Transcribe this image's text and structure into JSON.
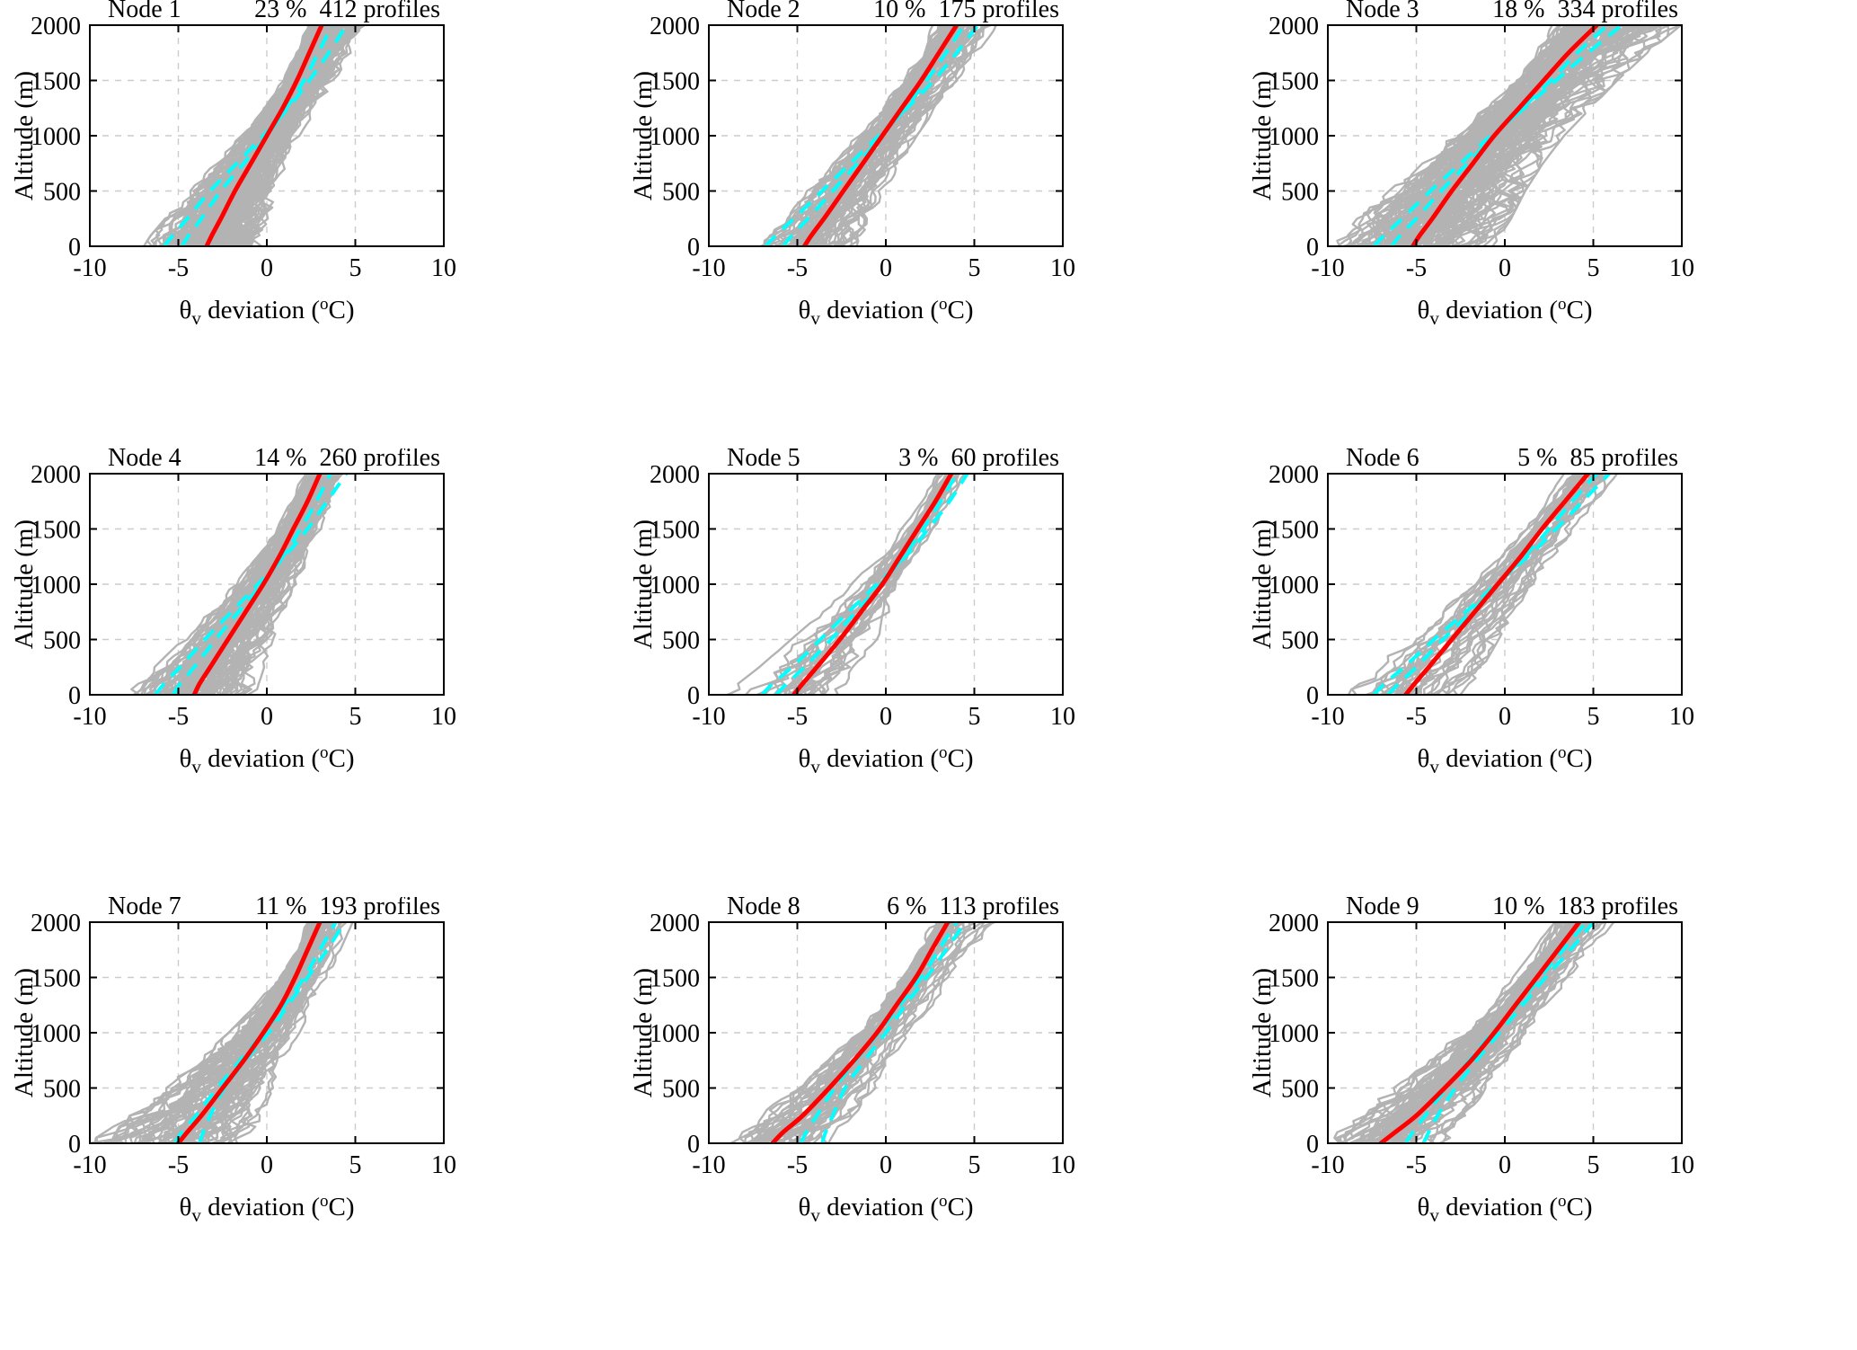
{
  "figure": {
    "layout": "3x3-small-multiples",
    "rows": 3,
    "cols": 3
  },
  "colors": {
    "profiles": "#b3b3b3",
    "mean": "#ff0000",
    "dashed": "#00ffff",
    "grid": "#cccccc",
    "axis": "#000000",
    "background": "#ffffff"
  },
  "axis": {
    "xlim": [
      -10,
      10
    ],
    "xticks": [
      -10,
      -5,
      0,
      5,
      10
    ],
    "ylim": [
      0,
      2000
    ],
    "yticks": [
      0,
      500,
      1000,
      1500,
      2000
    ],
    "ylabel": "Altitude (m)",
    "xlabel": {
      "theta": "θ",
      "sub": "v",
      "mid": " deviation (",
      "sup": "o",
      "end": "C)"
    },
    "grid": true
  },
  "altitudes": [
    0,
    100,
    250,
    500,
    750,
    1000,
    1250,
    1500,
    1750,
    2000
  ],
  "chart_data": [
    {
      "type": "line",
      "title": {
        "node": "Node 1",
        "stats": "23 %  412 profiles"
      },
      "percent": 23,
      "n_profiles": 412,
      "mean": [
        -3.4,
        -3.1,
        -2.6,
        -1.8,
        -0.9,
        0.0,
        0.9,
        1.7,
        2.4,
        3.1
      ],
      "dashed1": [
        -4.8,
        -4.4,
        -3.7,
        -2.6,
        -1.3,
        0.0,
        1.1,
        2.1,
        2.9,
        3.7
      ],
      "dashed2": [
        -5.8,
        -5.3,
        -4.5,
        -3.2,
        -1.7,
        -0.2,
        1.2,
        2.4,
        3.5,
        4.5
      ],
      "env_min": [
        -6.8,
        -6.4,
        -5.6,
        -4.2,
        -2.8,
        -1.4,
        -0.1,
        1.0,
        1.8,
        2.4
      ],
      "env_max": [
        -0.1,
        0.0,
        0.2,
        0.5,
        1.0,
        1.7,
        2.7,
        3.7,
        4.6,
        5.5
      ]
    },
    {
      "type": "line",
      "title": {
        "node": "Node 2",
        "stats": "10 %  175 profiles"
      },
      "percent": 10,
      "n_profiles": 175,
      "mean": [
        -4.6,
        -4.2,
        -3.5,
        -2.4,
        -1.3,
        -0.2,
        0.9,
        2.0,
        3.0,
        4.0
      ],
      "dashed1": [
        -5.8,
        -5.3,
        -4.4,
        -3.0,
        -1.6,
        -0.2,
        1.1,
        2.3,
        3.4,
        4.4
      ],
      "dashed2": [
        -6.8,
        -6.2,
        -5.2,
        -3.6,
        -2.0,
        -0.4,
        1.2,
        2.7,
        4.0,
        5.2
      ],
      "env_min": [
        -7.6,
        -7.0,
        -6.0,
        -4.5,
        -3.0,
        -1.6,
        -0.2,
        1.0,
        2.0,
        2.8
      ],
      "env_max": [
        -1.8,
        -1.5,
        -1.0,
        -0.2,
        0.7,
        1.6,
        2.7,
        3.9,
        5.0,
        6.2
      ]
    },
    {
      "type": "line",
      "title": {
        "node": "Node 3",
        "stats": "18 %  334 profiles"
      },
      "percent": 18,
      "n_profiles": 334,
      "mean": [
        -5.2,
        -4.8,
        -4.1,
        -3.0,
        -1.8,
        -0.6,
        0.8,
        2.2,
        3.6,
        5.2
      ],
      "dashed1": [
        -6.4,
        -5.9,
        -5.0,
        -3.6,
        -2.1,
        -0.6,
        1.0,
        2.6,
        4.1,
        5.8
      ],
      "dashed2": [
        -7.4,
        -6.8,
        -5.8,
        -4.2,
        -2.5,
        -0.8,
        1.1,
        2.9,
        4.7,
        6.6
      ],
      "env_min": [
        -9.9,
        -9.3,
        -8.2,
        -6.4,
        -4.6,
        -2.8,
        -1.0,
        0.6,
        1.8,
        2.8
      ],
      "env_max": [
        -0.8,
        -0.4,
        0.2,
        1.0,
        2.0,
        3.2,
        4.7,
        6.2,
        7.9,
        9.8
      ]
    },
    {
      "type": "line",
      "title": {
        "node": "Node 4",
        "stats": "14 %  260 profiles"
      },
      "percent": 14,
      "n_profiles": 260,
      "mean": [
        -4.1,
        -3.8,
        -3.2,
        -2.2,
        -1.2,
        -0.2,
        0.7,
        1.5,
        2.3,
        3.0
      ],
      "dashed1": [
        -5.3,
        -4.9,
        -4.1,
        -2.9,
        -1.6,
        -0.3,
        0.9,
        1.9,
        2.8,
        3.6
      ],
      "dashed2": [
        -6.3,
        -5.8,
        -4.9,
        -3.5,
        -2.0,
        -0.5,
        1.0,
        2.3,
        3.4,
        4.5
      ],
      "env_min": [
        -7.8,
        -7.2,
        -6.2,
        -4.6,
        -3.1,
        -1.7,
        -0.4,
        0.7,
        1.5,
        2.2
      ],
      "env_max": [
        -0.8,
        -0.6,
        -0.3,
        0.2,
        0.8,
        1.5,
        2.3,
        3.1,
        3.8,
        4.4
      ]
    },
    {
      "type": "line",
      "title": {
        "node": "Node 5",
        "stats": "3 %  60 profiles"
      },
      "percent": 3,
      "n_profiles": 60,
      "mean": [
        -5.2,
        -4.7,
        -3.9,
        -2.6,
        -1.4,
        -0.2,
        0.8,
        1.8,
        2.8,
        3.7
      ],
      "dashed1": [
        -6.2,
        -5.6,
        -4.6,
        -3.1,
        -1.7,
        -0.3,
        1.0,
        2.1,
        3.1,
        4.0
      ],
      "dashed2": [
        -7.0,
        -6.4,
        -5.3,
        -3.7,
        -2.1,
        -0.5,
        1.1,
        2.4,
        3.6,
        4.6
      ],
      "env_min": [
        -8.8,
        -8.2,
        -7.0,
        -5.2,
        -3.4,
        -1.8,
        -0.3,
        1.0,
        2.1,
        3.0
      ],
      "env_max": [
        -2.2,
        -1.8,
        -1.2,
        -0.4,
        0.4,
        1.2,
        2.1,
        3.0,
        3.8,
        4.6
      ]
    },
    {
      "type": "line",
      "title": {
        "node": "Node 6",
        "stats": "5 %  85 profiles"
      },
      "percent": 5,
      "n_profiles": 85,
      "mean": [
        -5.6,
        -5.1,
        -4.3,
        -3.0,
        -1.7,
        -0.4,
        0.9,
        2.1,
        3.4,
        4.7
      ],
      "dashed1": [
        -6.6,
        -6.0,
        -5.0,
        -3.5,
        -1.9,
        -0.4,
        1.1,
        2.5,
        3.8,
        5.2
      ],
      "dashed2": [
        -7.4,
        -6.8,
        -5.7,
        -4.0,
        -2.2,
        -0.5,
        1.3,
        2.9,
        4.4,
        5.9
      ],
      "env_min": [
        -9.0,
        -8.4,
        -7.2,
        -5.4,
        -3.6,
        -1.9,
        -0.3,
        1.2,
        2.4,
        3.5
      ],
      "env_max": [
        -2.4,
        -2.0,
        -1.4,
        -0.5,
        0.5,
        1.5,
        2.6,
        3.8,
        5.0,
        6.2
      ]
    },
    {
      "type": "line",
      "title": {
        "node": "Node 7",
        "stats": "11 %  193 profiles"
      },
      "percent": 11,
      "n_profiles": 193,
      "mean": [
        -5.0,
        -4.5,
        -3.7,
        -2.5,
        -1.3,
        -0.2,
        0.8,
        1.6,
        2.3,
        3.0
      ],
      "dashed1": [
        -5.2,
        -4.8,
        -4.0,
        -2.8,
        -1.5,
        -0.2,
        1.0,
        2.1,
        3.0,
        3.9
      ],
      "dashed2": [
        -3.8,
        -3.6,
        -3.2,
        -2.4,
        -1.2,
        0.1,
        1.2,
        2.3,
        3.4,
        4.4
      ],
      "env_min": [
        -10.0,
        -9.0,
        -7.6,
        -5.6,
        -3.8,
        -2.0,
        -0.5,
        0.8,
        1.7,
        2.4
      ],
      "env_max": [
        -1.2,
        -0.9,
        -0.4,
        0.2,
        0.9,
        1.7,
        2.5,
        3.3,
        4.0,
        4.7
      ]
    },
    {
      "type": "line",
      "title": {
        "node": "Node 8",
        "stats": "6 %  113 profiles"
      },
      "percent": 6,
      "n_profiles": 113,
      "mean": [
        -6.4,
        -5.8,
        -4.7,
        -3.2,
        -1.8,
        -0.5,
        0.6,
        1.7,
        2.6,
        3.5
      ],
      "dashed1": [
        -4.8,
        -4.5,
        -3.9,
        -2.9,
        -1.7,
        -0.4,
        0.8,
        2.0,
        3.0,
        4.0
      ],
      "dashed2": [
        -3.6,
        -3.4,
        -3.0,
        -2.3,
        -1.2,
        0.0,
        1.1,
        2.3,
        3.4,
        4.5
      ],
      "env_min": [
        -10.0,
        -9.2,
        -7.8,
        -5.8,
        -3.9,
        -2.1,
        -0.6,
        0.7,
        1.7,
        2.5
      ],
      "env_max": [
        -2.6,
        -2.2,
        -1.5,
        -0.5,
        0.4,
        1.4,
        2.5,
        3.6,
        4.8,
        6.6
      ]
    },
    {
      "type": "line",
      "title": {
        "node": "Node 9",
        "stats": "10 %  183 profiles"
      },
      "percent": 10,
      "n_profiles": 183,
      "mean": [
        -7.0,
        -6.2,
        -5.0,
        -3.4,
        -1.9,
        -0.6,
        0.6,
        1.8,
        3.0,
        4.2
      ],
      "dashed1": [
        -5.6,
        -5.2,
        -4.5,
        -3.3,
        -2.0,
        -0.7,
        0.7,
        2.0,
        3.3,
        4.6
      ],
      "dashed2": [
        -4.6,
        -4.3,
        -3.8,
        -2.8,
        -1.6,
        -0.3,
        1.0,
        2.3,
        3.7,
        5.0
      ],
      "env_min": [
        -10.0,
        -9.4,
        -8.2,
        -6.2,
        -4.2,
        -2.4,
        -0.8,
        0.6,
        1.8,
        2.8
      ],
      "env_max": [
        -3.0,
        -2.5,
        -1.7,
        -0.6,
        0.4,
        1.4,
        2.5,
        3.6,
        4.8,
        6.0
      ]
    }
  ]
}
